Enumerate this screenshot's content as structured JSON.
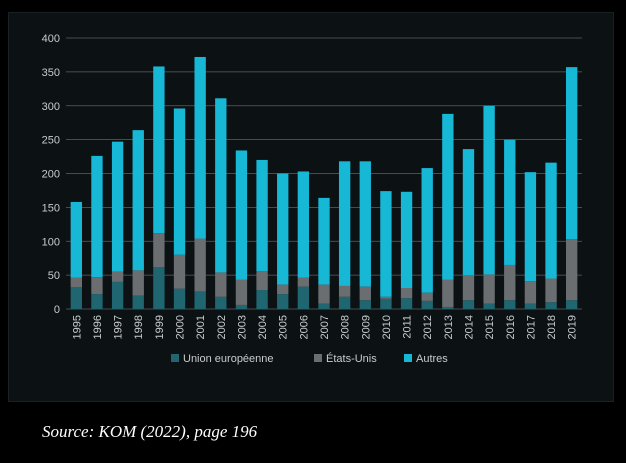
{
  "chart_data": {
    "type": "bar",
    "stacked": true,
    "categories": [
      "1995",
      "1996",
      "1997",
      "1998",
      "1999",
      "2000",
      "2001",
      "2002",
      "2003",
      "2004",
      "2005",
      "2006",
      "2007",
      "2008",
      "2009",
      "2010",
      "2011",
      "2012",
      "2013",
      "2014",
      "2015",
      "2016",
      "2017",
      "2018",
      "2019"
    ],
    "series": [
      {
        "name": "Union européenne",
        "color": "#1f6670",
        "values": [
          32,
          22,
          40,
          20,
          62,
          30,
          26,
          18,
          6,
          28,
          22,
          33,
          8,
          18,
          13,
          15,
          16,
          12,
          3,
          13,
          8,
          13,
          8,
          10,
          13
        ]
      },
      {
        "name": "États-Unis",
        "color": "#6b6e70",
        "values": [
          14,
          25,
          15,
          37,
          50,
          50,
          78,
          36,
          37,
          28,
          14,
          13,
          28,
          16,
          20,
          3,
          15,
          12,
          40,
          37,
          43,
          52,
          33,
          35,
          90
        ]
      },
      {
        "name": "Autres",
        "color": "#17b7d6",
        "values": [
          112,
          179,
          192,
          207,
          246,
          216,
          268,
          257,
          191,
          164,
          164,
          157,
          128,
          184,
          185,
          156,
          142,
          184,
          245,
          186,
          249,
          185,
          161,
          171,
          254
        ]
      }
    ],
    "ylim": [
      0,
      400
    ],
    "yticks": [
      0,
      50,
      100,
      150,
      200,
      250,
      300,
      350,
      400
    ],
    "grid": true,
    "legend_position": "bottom"
  },
  "source_text": "Source: KOM (2022), page 196"
}
